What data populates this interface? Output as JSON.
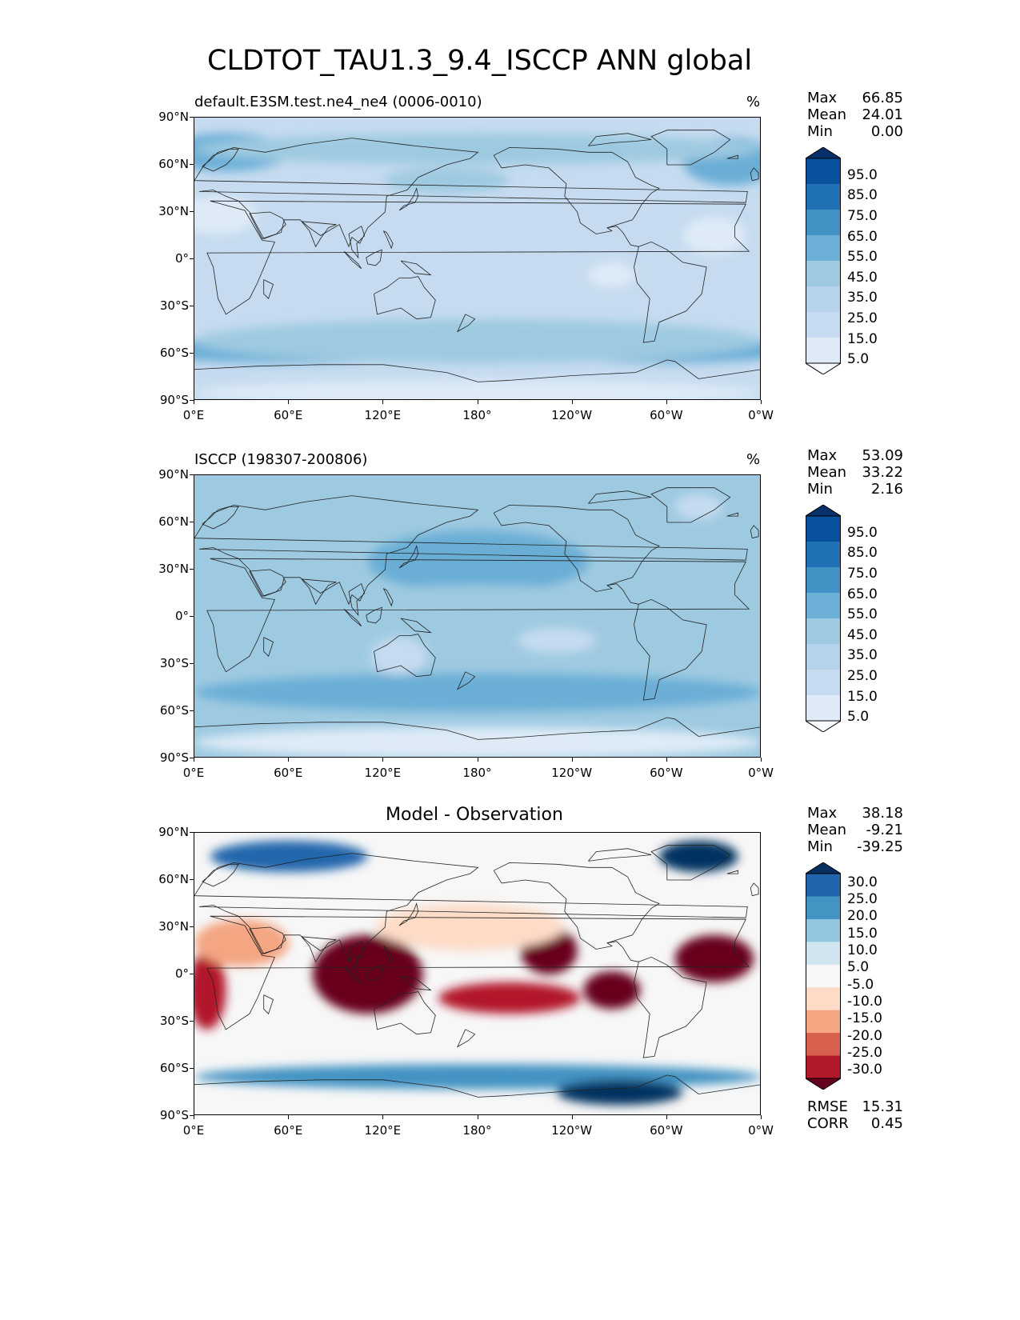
{
  "figure_title": "CLDTOT_TAU1.3_9.4_ISCCP ANN global",
  "colors": {
    "blues": [
      "#f7fbff",
      "#deebf7",
      "#c6dbef",
      "#b5d3ea",
      "#9ecae1",
      "#6baed6",
      "#4292c6",
      "#2171b5",
      "#08519c",
      "#08306b"
    ],
    "diverging": [
      "#67001f",
      "#b2182b",
      "#d6604d",
      "#f4a582",
      "#fddbc7",
      "#f7f7f7",
      "#d1e5f0",
      "#92c5de",
      "#4393c3",
      "#2166ac",
      "#053061"
    ],
    "coast": "#222222"
  },
  "axes": {
    "lat_ticks": [
      "90°N",
      "60°N",
      "30°N",
      "0°",
      "30°S",
      "60°S",
      "90°S"
    ],
    "lon_ticks": [
      "0°E",
      "60°E",
      "120°E",
      "180°",
      "120°W",
      "60°W",
      "0°W"
    ]
  },
  "panels": [
    {
      "id": "test",
      "title": "default.E3SM.test.ne4_ne4 (0006-0010)",
      "units": "%",
      "stats": [
        {
          "label": "Max",
          "value": "66.85"
        },
        {
          "label": "Mean",
          "value": "24.01"
        },
        {
          "label": "Min",
          "value": "0.00"
        }
      ],
      "colorbar_ticks": [
        "95.0",
        "85.0",
        "75.0",
        "65.0",
        "55.0",
        "45.0",
        "35.0",
        "25.0",
        "15.0",
        "5.0"
      ]
    },
    {
      "id": "ref",
      "title": "ISCCP (198307-200806)",
      "units": "%",
      "stats": [
        {
          "label": "Max",
          "value": "53.09"
        },
        {
          "label": "Mean",
          "value": "33.22"
        },
        {
          "label": "Min",
          "value": "2.16"
        }
      ],
      "colorbar_ticks": [
        "95.0",
        "85.0",
        "75.0",
        "65.0",
        "55.0",
        "45.0",
        "35.0",
        "25.0",
        "15.0",
        "5.0"
      ]
    },
    {
      "id": "diff",
      "title": "Model - Observation",
      "units": "",
      "stats": [
        {
          "label": "Max",
          "value": "38.18"
        },
        {
          "label": "Mean",
          "value": "-9.21"
        },
        {
          "label": "Min",
          "value": "-39.25"
        }
      ],
      "colorbar_ticks": [
        "30.0",
        "25.0",
        "20.0",
        "15.0",
        "10.0",
        "5.0",
        "-5.0",
        "-10.0",
        "-15.0",
        "-20.0",
        "-25.0",
        "-30.0"
      ],
      "metrics": [
        {
          "label": "RMSE",
          "value": "15.31"
        },
        {
          "label": "CORR",
          "value": "0.45"
        }
      ]
    }
  ],
  "chart_data": {
    "type": "heatmap",
    "title": "CLDTOT_TAU1.3_9.4_ISCCP ANN global",
    "projection": "PlateCarree",
    "lon_range": [
      0,
      360
    ],
    "lat_range": [
      -90,
      90
    ],
    "panels": [
      {
        "name": "default.E3SM.test.ne4_ne4 (0006-0010)",
        "units": "%",
        "max": 66.85,
        "mean": 24.01,
        "min": 0.0,
        "levels": [
          5,
          15,
          25,
          35,
          45,
          55,
          65,
          75,
          85,
          95
        ],
        "field": [
          {
            "lon": 60,
            "lat": -58,
            "rx": 95,
            "ry": 8,
            "value": 50
          },
          {
            "lon": 180,
            "lat": -58,
            "rx": 90,
            "ry": 8,
            "value": 52
          },
          {
            "lon": 300,
            "lat": -58,
            "rx": 80,
            "ry": 8,
            "value": 48
          },
          {
            "lon": 180,
            "lat": -52,
            "rx": 180,
            "ry": 14,
            "value": 40
          },
          {
            "lon": 20,
            "lat": 68,
            "rx": 40,
            "ry": 12,
            "value": 45
          },
          {
            "lon": 340,
            "lat": 62,
            "rx": 30,
            "ry": 15,
            "value": 48
          },
          {
            "lon": 160,
            "lat": 50,
            "rx": 40,
            "ry": 8,
            "value": 40
          },
          {
            "lon": 180,
            "lat": 70,
            "rx": 180,
            "ry": 10,
            "value": 35
          },
          {
            "lon": 15,
            "lat": 28,
            "rx": 25,
            "ry": 12,
            "value": 8
          },
          {
            "lon": 330,
            "lat": 15,
            "rx": 20,
            "ry": 12,
            "value": 10
          },
          {
            "lon": 215,
            "lat": 12,
            "rx": 30,
            "ry": 8,
            "value": 15
          },
          {
            "lon": 265,
            "lat": -10,
            "rx": 15,
            "ry": 8,
            "value": 10
          },
          {
            "lon": 180,
            "lat": -85,
            "rx": 180,
            "ry": 8,
            "value": 10
          }
        ]
      },
      {
        "name": "ISCCP (198307-200806)",
        "units": "%",
        "max": 53.09,
        "mean": 33.22,
        "min": 2.16,
        "levels": [
          5,
          15,
          25,
          35,
          45,
          55,
          65,
          75,
          85,
          95
        ],
        "field": [
          {
            "lon": 180,
            "lat": -48,
            "rx": 180,
            "ry": 12,
            "value": 48
          },
          {
            "lon": 180,
            "lat": 35,
            "rx": 70,
            "ry": 20,
            "value": 45
          },
          {
            "lon": 180,
            "lat": 10,
            "rx": 90,
            "ry": 10,
            "value": 40
          },
          {
            "lon": 80,
            "lat": -10,
            "rx": 40,
            "ry": 15,
            "value": 38
          },
          {
            "lon": 130,
            "lat": -25,
            "rx": 18,
            "ry": 12,
            "value": 18
          },
          {
            "lon": 230,
            "lat": -15,
            "rx": 25,
            "ry": 8,
            "value": 22
          },
          {
            "lon": 180,
            "lat": -80,
            "rx": 180,
            "ry": 10,
            "value": 10
          },
          {
            "lon": 320,
            "lat": 70,
            "rx": 15,
            "ry": 8,
            "value": 15
          }
        ]
      },
      {
        "name": "Model - Observation",
        "max": 38.18,
        "mean": -9.21,
        "min": -39.25,
        "levels": [
          -30,
          -25,
          -20,
          -15,
          -10,
          -5,
          5,
          10,
          15,
          20,
          25,
          30
        ],
        "field": [
          {
            "lon": 110,
            "lat": 0,
            "rx": 35,
            "ry": 25,
            "value": -32
          },
          {
            "lon": 200,
            "lat": -15,
            "rx": 45,
            "ry": 10,
            "value": -27
          },
          {
            "lon": 225,
            "lat": 15,
            "rx": 18,
            "ry": 15,
            "value": -32
          },
          {
            "lon": 265,
            "lat": -10,
            "rx": 18,
            "ry": 12,
            "value": -34
          },
          {
            "lon": 330,
            "lat": 10,
            "rx": 25,
            "ry": 15,
            "value": -33
          },
          {
            "lon": 8,
            "lat": -10,
            "rx": 12,
            "ry": 25,
            "value": -30
          },
          {
            "lon": 30,
            "lat": 20,
            "rx": 30,
            "ry": 15,
            "value": -18
          },
          {
            "lon": 175,
            "lat": 30,
            "rx": 60,
            "ry": 15,
            "value": -15
          },
          {
            "lon": 320,
            "lat": 75,
            "rx": 25,
            "ry": 10,
            "value": 30
          },
          {
            "lon": 60,
            "lat": 75,
            "rx": 50,
            "ry": 10,
            "value": 18
          },
          {
            "lon": 180,
            "lat": -65,
            "rx": 180,
            "ry": 8,
            "value": 12
          },
          {
            "lon": 270,
            "lat": -75,
            "rx": 40,
            "ry": 8,
            "value": 20
          }
        ]
      }
    ]
  }
}
